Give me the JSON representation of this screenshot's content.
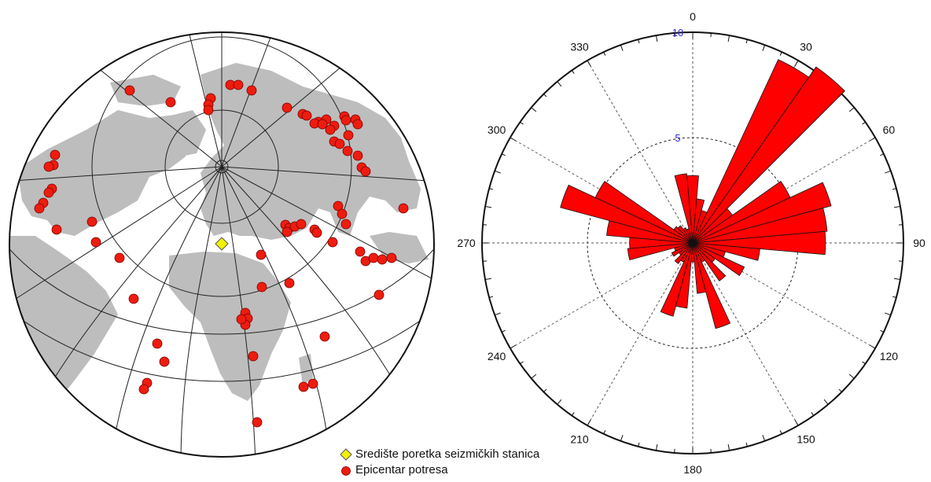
{
  "legend": {
    "station_label": "Središte poretka seizmičkih stanica",
    "epicenter_label": "Epicentar potresa",
    "station_color": "#f3f000",
    "epicenter_color": "#ee1c0f"
  },
  "map": {
    "land_color": "#bdbdbd",
    "graticule_color": "#222222",
    "station_symbol": "yellow-diamond",
    "epicenter_symbol": "red-circle"
  },
  "chart_data": {
    "type": "rose",
    "angular_tick_labels": [
      "0",
      "30",
      "60",
      "90",
      "120",
      "150",
      "180",
      "210",
      "240",
      "270",
      "300",
      "330"
    ],
    "radial_tick_labels": [
      "5",
      "10"
    ],
    "radial_max": 10,
    "bin_width_deg": 10,
    "bar_color": "#ff0000",
    "bins": [
      {
        "azimuth": 0,
        "value": 3.2
      },
      {
        "azimuth": 10,
        "value": 2.1
      },
      {
        "azimuth": 20,
        "value": 1.6
      },
      {
        "azimuth": 30,
        "value": 9.6
      },
      {
        "azimuth": 40,
        "value": 10.2
      },
      {
        "azimuth": 50,
        "value": 2.3
      },
      {
        "azimuth": 60,
        "value": 5.1
      },
      {
        "azimuth": 70,
        "value": 6.8
      },
      {
        "azimuth": 80,
        "value": 6.4
      },
      {
        "azimuth": 90,
        "value": 6.3
      },
      {
        "azimuth": 100,
        "value": 3.2
      },
      {
        "azimuth": 110,
        "value": 1.6
      },
      {
        "azimuth": 120,
        "value": 2.7
      },
      {
        "azimuth": 130,
        "value": 1.3
      },
      {
        "azimuth": 140,
        "value": 2.2
      },
      {
        "azimuth": 150,
        "value": 1.0
      },
      {
        "azimuth": 160,
        "value": 4.2
      },
      {
        "azimuth": 170,
        "value": 2.4
      },
      {
        "azimuth": 180,
        "value": 0.9
      },
      {
        "azimuth": 190,
        "value": 3.1
      },
      {
        "azimuth": 200,
        "value": 3.6
      },
      {
        "azimuth": 210,
        "value": 1.0
      },
      {
        "azimuth": 220,
        "value": 1.2
      },
      {
        "azimuth": 230,
        "value": 0.8
      },
      {
        "azimuth": 240,
        "value": 1.1
      },
      {
        "azimuth": 250,
        "value": 0.9
      },
      {
        "azimuth": 260,
        "value": 3.1
      },
      {
        "azimuth": 270,
        "value": 3.0
      },
      {
        "azimuth": 280,
        "value": 4.1
      },
      {
        "azimuth": 290,
        "value": 6.5
      },
      {
        "azimuth": 300,
        "value": 5.1
      },
      {
        "azimuth": 310,
        "value": 1.1
      },
      {
        "azimuth": 320,
        "value": 1.0
      },
      {
        "azimuth": 330,
        "value": 0.8
      },
      {
        "azimuth": 340,
        "value": 0.7
      },
      {
        "azimuth": 350,
        "value": 3.3
      }
    ]
  }
}
